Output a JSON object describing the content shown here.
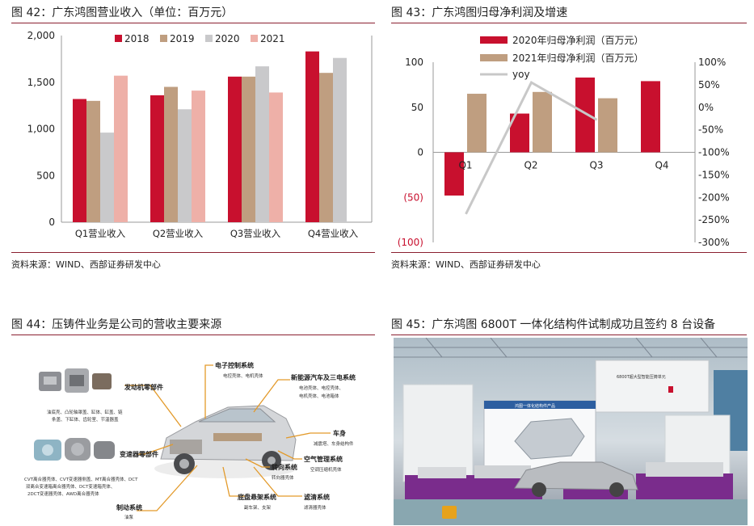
{
  "colors": {
    "rule": "#8a2030",
    "red": "#c8102e",
    "tan": "#bf9e80",
    "grey": "#c9c9cb",
    "pink": "#eeb0a8",
    "line": "#c8c8c8",
    "orange": "#e39a2a"
  },
  "fig42": {
    "title": "图 42：广东鸿图营业收入（单位：百万元）",
    "source": "资料来源：WIND、西部证券研发中心",
    "chart_data": {
      "type": "bar",
      "categories": [
        "Q1营业收入",
        "Q2营业收入",
        "Q3营业收入",
        "Q4营业收入"
      ],
      "series": [
        {
          "name": "2018",
          "values": [
            1320,
            1360,
            1560,
            1830
          ]
        },
        {
          "name": "2019",
          "values": [
            1300,
            1450,
            1560,
            1600
          ]
        },
        {
          "name": "2020",
          "values": [
            960,
            1210,
            1670,
            1760
          ]
        },
        {
          "name": "2021",
          "values": [
            1570,
            1410,
            1390,
            null
          ]
        }
      ],
      "ylim": [
        0,
        2000
      ],
      "yticks": [
        "0",
        "500",
        "1,000",
        "1,500",
        "2,000"
      ],
      "legend": "top",
      "grid": false
    }
  },
  "fig43": {
    "title": "图 43：广东鸿图归母净利润及增速",
    "source": "资料来源：WIND、西部证券研发中心",
    "chart_data": {
      "type": "bar",
      "categories": [
        "Q1",
        "Q2",
        "Q3",
        "Q4"
      ],
      "series": [
        {
          "name": "2020年归母净利润（百万元）",
          "axis": "left",
          "values": [
            -48,
            43,
            83,
            79
          ]
        },
        {
          "name": "2021年归母净利润（百万元）",
          "axis": "left",
          "values": [
            65,
            67,
            60,
            null
          ]
        },
        {
          "name": "yoy",
          "type": "line",
          "axis": "right",
          "values": [
            -237,
            55,
            -28,
            null
          ]
        }
      ],
      "ylim": [
        -100,
        100
      ],
      "yticks": [
        "(100)",
        "(50)",
        "0",
        "50",
        "100"
      ],
      "y2lim": [
        -300,
        100
      ],
      "y2ticks": [
        "-300%",
        "-250%",
        "-200%",
        "-150%",
        "-100%",
        "-50%",
        "0%",
        "50%",
        "100%"
      ],
      "legend": "top-left"
    }
  },
  "fig44": {
    "title": "图 44：压铸件业务是公司的营收主要来源",
    "labels": {
      "engine": "发动机零部件",
      "engine_desc_1": "油底壳、凸轮轴罩盖、缸体、缸盖、链",
      "engine_desc_2": "条盖、下缸体、齿轮室、节温器盖",
      "trans": "变速器零部件",
      "trans_desc_1": "CVT离合器壳体、CVT变速器侧盖、MT离合器壳体、DCT",
      "trans_desc_2": "双离合变速箱离合器壳体、DCT变速箱壳体、",
      "trans_desc_3": "2DCT变速器壳体、AWD离合器壳体",
      "brake": "制动系统",
      "brake_desc": "油泵",
      "electronic": "电子控制系统",
      "electronic_desc": "电控壳体、电机壳体",
      "nev": "新能源汽车及三电系统",
      "nev_desc_1": "电池壳体、电控壳体、",
      "nev_desc_2": "电机壳体、电池箱体",
      "body": "车身",
      "body_desc": "减震塔、车身结构件",
      "ac": "空气管理系统",
      "ac_desc": "空调压缩机壳体",
      "steering": "转向系统",
      "steering_desc": "转向器壳体",
      "chassis": "底盘悬架系统",
      "chassis_desc": "副车架、支架",
      "filter": "滤清系统",
      "filter_desc": "滤清器壳体"
    }
  },
  "fig45": {
    "title": "图 45：广东鸿图 6800T 一体化结构件试制成功且签约 8 台设备",
    "photo_text": {
      "banner": "6800T超大型智能压铸单元",
      "board": "鸿图一体化结构件产品"
    }
  }
}
